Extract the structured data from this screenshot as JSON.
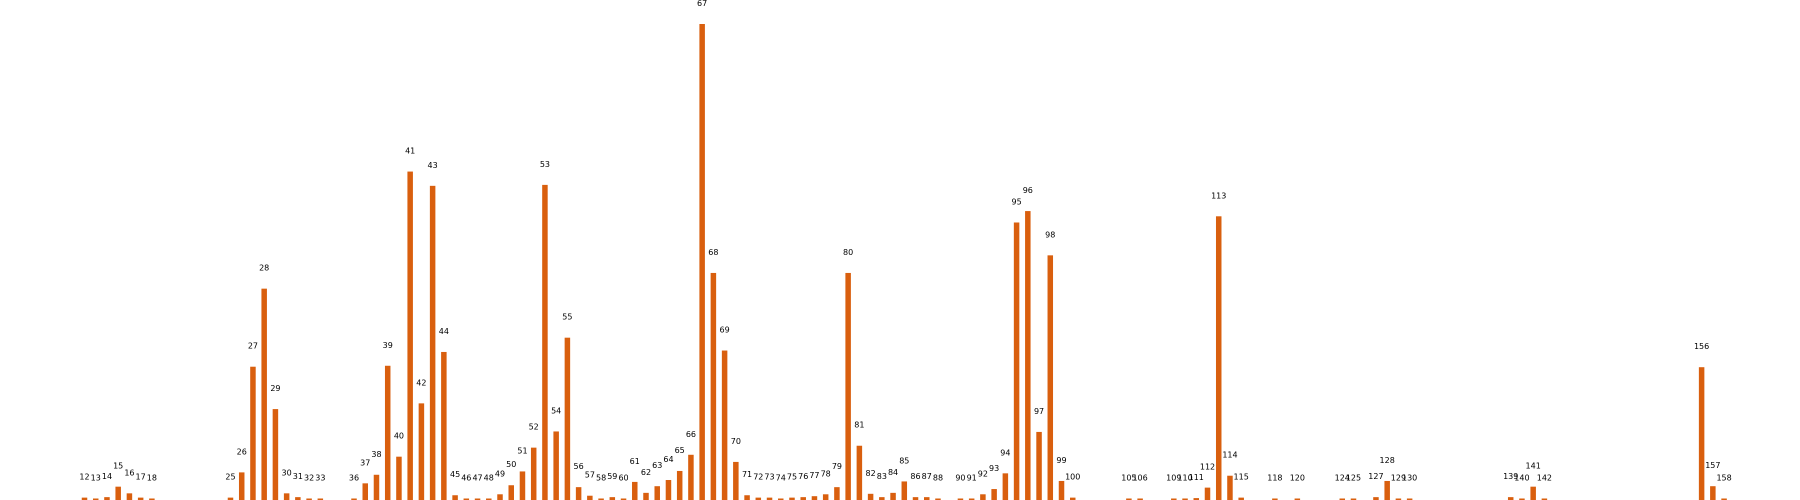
{
  "chart_data": {
    "type": "bar",
    "title": "",
    "xlabel": "",
    "ylabel": "",
    "bar_color": "#d95f0e",
    "label_color": "#000000",
    "background_color": "#ffffff",
    "grid": false,
    "axes_visible": false,
    "ylim": [
      0,
      100
    ],
    "xlim": [
      5,
      165
    ],
    "points": [
      {
        "x": 12,
        "label": "12",
        "value": 0.5
      },
      {
        "x": 13,
        "label": "13",
        "value": 0.2
      },
      {
        "x": 14,
        "label": "14",
        "value": 0.6
      },
      {
        "x": 15,
        "label": "15",
        "value": 2.8
      },
      {
        "x": 16,
        "label": "16",
        "value": 1.4
      },
      {
        "x": 17,
        "label": "17",
        "value": 0.5
      },
      {
        "x": 18,
        "label": "18",
        "value": 0.2
      },
      {
        "x": 25,
        "label": "25",
        "value": 0.5
      },
      {
        "x": 26,
        "label": "26",
        "value": 5.8
      },
      {
        "x": 27,
        "label": "27",
        "value": 28.0
      },
      {
        "x": 28,
        "label": "28",
        "value": 44.4
      },
      {
        "x": 29,
        "label": "29",
        "value": 19.1
      },
      {
        "x": 30,
        "label": "30",
        "value": 1.4
      },
      {
        "x": 31,
        "label": "31",
        "value": 0.6
      },
      {
        "x": 32,
        "label": "32",
        "value": 0.3
      },
      {
        "x": 33,
        "label": "33",
        "value": 0.1
      },
      {
        "x": 36,
        "label": "36",
        "value": 0.2
      },
      {
        "x": 37,
        "label": "37",
        "value": 3.5
      },
      {
        "x": 38,
        "label": "38",
        "value": 5.3
      },
      {
        "x": 39,
        "label": "39",
        "value": 28.2
      },
      {
        "x": 40,
        "label": "40",
        "value": 9.1
      },
      {
        "x": 41,
        "label": "41",
        "value": 69.0
      },
      {
        "x": 42,
        "label": "42",
        "value": 20.3
      },
      {
        "x": 43,
        "label": "43",
        "value": 66.0
      },
      {
        "x": 44,
        "label": "44",
        "value": 31.1
      },
      {
        "x": 45,
        "label": "45",
        "value": 1.0
      },
      {
        "x": 46,
        "label": "46",
        "value": 0.3
      },
      {
        "x": 47,
        "label": "47",
        "value": 0.2
      },
      {
        "x": 48,
        "label": "48",
        "value": 0.1
      },
      {
        "x": 49,
        "label": "49",
        "value": 1.2
      },
      {
        "x": 50,
        "label": "50",
        "value": 3.1
      },
      {
        "x": 51,
        "label": "51",
        "value": 6.0
      },
      {
        "x": 52,
        "label": "52",
        "value": 11.0
      },
      {
        "x": 53,
        "label": "53",
        "value": 66.2
      },
      {
        "x": 54,
        "label": "54",
        "value": 14.4
      },
      {
        "x": 55,
        "label": "55",
        "value": 34.1
      },
      {
        "x": 56,
        "label": "56",
        "value": 2.7
      },
      {
        "x": 57,
        "label": "57",
        "value": 0.9
      },
      {
        "x": 58,
        "label": "58",
        "value": 0.1
      },
      {
        "x": 59,
        "label": "59",
        "value": 0.6
      },
      {
        "x": 60,
        "label": "60",
        "value": 0.3
      },
      {
        "x": 61,
        "label": "61",
        "value": 3.8
      },
      {
        "x": 62,
        "label": "62",
        "value": 1.5
      },
      {
        "x": 63,
        "label": "63",
        "value": 2.9
      },
      {
        "x": 64,
        "label": "64",
        "value": 4.2
      },
      {
        "x": 65,
        "label": "65",
        "value": 6.1
      },
      {
        "x": 66,
        "label": "66",
        "value": 9.5
      },
      {
        "x": 67,
        "label": "67",
        "value": 100.0
      },
      {
        "x": 68,
        "label": "68",
        "value": 47.7
      },
      {
        "x": 69,
        "label": "69",
        "value": 31.4
      },
      {
        "x": 70,
        "label": "70",
        "value": 8.0
      },
      {
        "x": 71,
        "label": "71",
        "value": 1.0
      },
      {
        "x": 72,
        "label": "72",
        "value": 0.5
      },
      {
        "x": 73,
        "label": "73",
        "value": 0.5
      },
      {
        "x": 74,
        "label": "74",
        "value": 0.1
      },
      {
        "x": 75,
        "label": "75",
        "value": 0.5
      },
      {
        "x": 76,
        "label": "76",
        "value": 0.6
      },
      {
        "x": 77,
        "label": "77",
        "value": 0.8
      },
      {
        "x": 78,
        "label": "78",
        "value": 1.2
      },
      {
        "x": 79,
        "label": "79",
        "value": 2.7
      },
      {
        "x": 80,
        "label": "80",
        "value": 47.7
      },
      {
        "x": 81,
        "label": "81",
        "value": 11.4
      },
      {
        "x": 82,
        "label": "82",
        "value": 1.3
      },
      {
        "x": 83,
        "label": "83",
        "value": 0.6
      },
      {
        "x": 84,
        "label": "84",
        "value": 1.5
      },
      {
        "x": 85,
        "label": "85",
        "value": 3.9
      },
      {
        "x": 86,
        "label": "86",
        "value": 0.6
      },
      {
        "x": 87,
        "label": "87",
        "value": 0.6
      },
      {
        "x": 88,
        "label": "88",
        "value": 0.1
      },
      {
        "x": 90,
        "label": "90",
        "value": 0.1
      },
      {
        "x": 91,
        "label": "91",
        "value": 0.2
      },
      {
        "x": 92,
        "label": "92",
        "value": 1.2
      },
      {
        "x": 93,
        "label": "93",
        "value": 2.3
      },
      {
        "x": 94,
        "label": "94",
        "value": 5.6
      },
      {
        "x": 95,
        "label": "95",
        "value": 58.3
      },
      {
        "x": 96,
        "label": "96",
        "value": 60.7
      },
      {
        "x": 97,
        "label": "97",
        "value": 14.3
      },
      {
        "x": 98,
        "label": "98",
        "value": 51.4
      },
      {
        "x": 99,
        "label": "99",
        "value": 4.0
      },
      {
        "x": 100,
        "label": "100",
        "value": 0.5
      },
      {
        "x": 105,
        "label": "105",
        "value": 0.1
      },
      {
        "x": 106,
        "label": "106",
        "value": 0.1
      },
      {
        "x": 109,
        "label": "109",
        "value": 0.1
      },
      {
        "x": 110,
        "label": "110",
        "value": 0.3
      },
      {
        "x": 111,
        "label": "111",
        "value": 0.4
      },
      {
        "x": 112,
        "label": "112",
        "value": 2.6
      },
      {
        "x": 113,
        "label": "113",
        "value": 59.6
      },
      {
        "x": 114,
        "label": "114",
        "value": 5.1
      },
      {
        "x": 115,
        "label": "115",
        "value": 0.5
      },
      {
        "x": 118,
        "label": "118",
        "value": 0.1
      },
      {
        "x": 120,
        "label": "120",
        "value": 0.1
      },
      {
        "x": 124,
        "label": "124",
        "value": 0.2
      },
      {
        "x": 125,
        "label": "125",
        "value": 0.1
      },
      {
        "x": 127,
        "label": "127",
        "value": 0.6
      },
      {
        "x": 128,
        "label": "128",
        "value": 4.0
      },
      {
        "x": 129,
        "label": "129",
        "value": 0.3
      },
      {
        "x": 130,
        "label": "130",
        "value": 0.3
      },
      {
        "x": 139,
        "label": "139",
        "value": 0.6
      },
      {
        "x": 140,
        "label": "140",
        "value": 0.1
      },
      {
        "x": 141,
        "label": "141",
        "value": 2.8
      },
      {
        "x": 142,
        "label": "142",
        "value": 0.3
      },
      {
        "x": 156,
        "label": "156",
        "value": 27.9
      },
      {
        "x": 157,
        "label": "157",
        "value": 2.9
      },
      {
        "x": 158,
        "label": "158",
        "value": 0.1
      }
    ]
  }
}
